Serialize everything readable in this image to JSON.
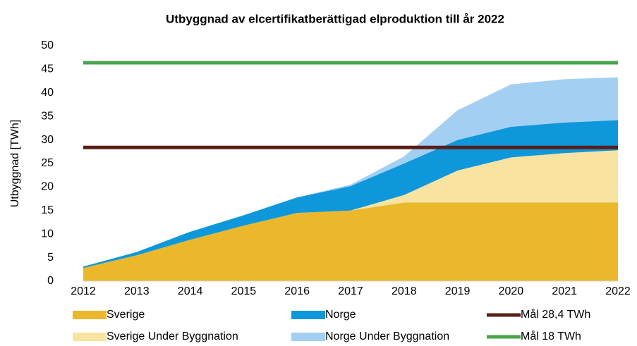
{
  "chart_data": {
    "type": "stacked_area",
    "title": "Utbyggnad av elcertifikatberättigad elproduktion till år 2022",
    "y_label": "Utbyggnad [TWh]",
    "categories": [
      "2012",
      "2013",
      "2014",
      "2015",
      "2016",
      "2017",
      "2018",
      "2019",
      "2020",
      "2021",
      "2022"
    ],
    "ylim": [
      0,
      50
    ],
    "yticks": [
      0,
      5,
      10,
      15,
      20,
      25,
      30,
      35,
      40,
      45,
      50
    ],
    "series": [
      {
        "name": "Sverige",
        "color": "#ebb72b",
        "kind": "area",
        "values": [
          2.8,
          5.5,
          8.8,
          11.8,
          14.5,
          15.0,
          16.7,
          16.7,
          16.7,
          16.7,
          16.7
        ]
      },
      {
        "name": "Sverige Under Byggnation",
        "color": "#f9e3a0",
        "kind": "area",
        "values": [
          0,
          0,
          0,
          0,
          0,
          0,
          1.6,
          6.8,
          9.6,
          10.5,
          11.1
        ]
      },
      {
        "name": "Norge",
        "color": "#0f97db",
        "kind": "area",
        "values": [
          0.3,
          0.7,
          1.7,
          2.2,
          3.3,
          5.2,
          6.7,
          6.5,
          6.5,
          6.5,
          6.4
        ]
      },
      {
        "name": "Norge Under Byggnation",
        "color": "#a3cff3",
        "kind": "area",
        "values": [
          0,
          0,
          0,
          0,
          0,
          0.3,
          1.5,
          6.3,
          9.0,
          9.2,
          9.1
        ]
      },
      {
        "name": "Mål 28,4 TWh",
        "color": "#5a1e18",
        "kind": "line",
        "values": [
          28.4,
          28.4,
          28.4,
          28.4,
          28.4,
          28.4,
          28.4,
          28.4,
          28.4,
          28.4,
          28.4
        ]
      },
      {
        "name": "Mål 18 TWh",
        "color": "#4aa54a",
        "kind": "line",
        "values": [
          46.4,
          46.4,
          46.4,
          46.4,
          46.4,
          46.4,
          46.4,
          46.4,
          46.4,
          46.4,
          46.4
        ]
      }
    ]
  }
}
